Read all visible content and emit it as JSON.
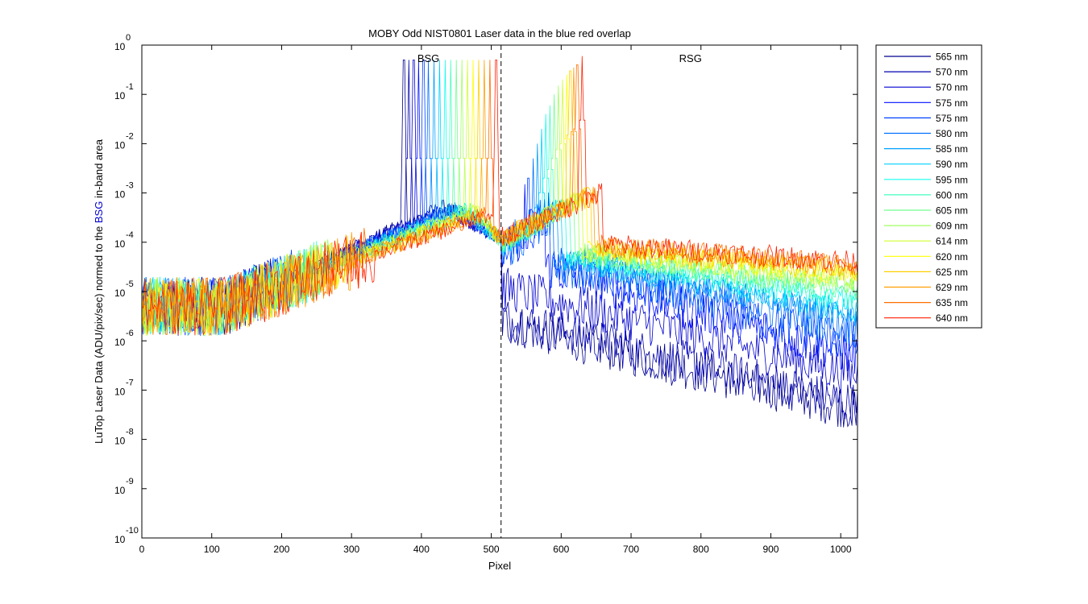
{
  "chart_data": {
    "type": "line",
    "title": "MOBY Odd NIST0801  Laser data in the blue red overlap",
    "xlabel": "Pixel",
    "ylabel_parts": [
      "LuTop Laser Data (ADU/pix/sec) normed to the ",
      "BSG",
      " in-band area"
    ],
    "ylabel_highlight_color": "#0000cc",
    "xlim": [
      0,
      1024
    ],
    "ylim": [
      1e-10,
      1
    ],
    "yscale": "log",
    "grid": false,
    "legend_position": "outside-right",
    "x_ticks": [
      0,
      100,
      200,
      300,
      400,
      500,
      600,
      700,
      800,
      900,
      1000
    ],
    "y_ticks": [
      {
        "base": "10",
        "exp": "0"
      },
      {
        "base": "10",
        "exp": "-1"
      },
      {
        "base": "10",
        "exp": "-2"
      },
      {
        "base": "10",
        "exp": "-3"
      },
      {
        "base": "10",
        "exp": "-4"
      },
      {
        "base": "10",
        "exp": "-5"
      },
      {
        "base": "10",
        "exp": "-6"
      },
      {
        "base": "10",
        "exp": "-7"
      },
      {
        "base": "10",
        "exp": "-8"
      },
      {
        "base": "10",
        "exp": "-9"
      },
      {
        "base": "10",
        "exp": "-10"
      }
    ],
    "divider_x": 514,
    "annotations": [
      {
        "text": "BSG",
        "x": 410,
        "y": 0.45,
        "color": "#0000cc"
      },
      {
        "text": "RSG",
        "x": 785,
        "y": 0.45,
        "color": "#cc0000"
      }
    ],
    "series": [
      {
        "name": "565 nm",
        "color": "#00008f",
        "bsg_peak_x": 375,
        "bsg_peak_y": 0.5,
        "rsg_peak_x": null,
        "rsg_peak_y": null,
        "rsg_level": 4e-08,
        "bsg_start": 5e-06,
        "bsg_hump": 0.0005
      },
      {
        "name": "570 nm",
        "color": "#0000af",
        "bsg_peak_x": 382,
        "bsg_peak_y": 0.5,
        "rsg_peak_x": null,
        "rsg_peak_y": null,
        "rsg_level": 5e-08,
        "bsg_start": 5e-06,
        "bsg_hump": 0.0005
      },
      {
        "name": "570 nm",
        "color": "#0000cf",
        "bsg_peak_x": 389,
        "bsg_peak_y": 0.5,
        "rsg_peak_x": null,
        "rsg_peak_y": null,
        "rsg_level": 2e-07,
        "bsg_start": 5e-06,
        "bsg_hump": 0.00048
      },
      {
        "name": "575 nm",
        "color": "#0010ff",
        "bsg_peak_x": 396,
        "bsg_peak_y": 0.5,
        "rsg_peak_x": 548,
        "rsg_peak_y": 0.0015,
        "rsg_level": 5e-07,
        "bsg_start": 5e-06,
        "bsg_hump": 0.00048
      },
      {
        "name": "575 nm",
        "color": "#0040ff",
        "bsg_peak_x": 403,
        "bsg_peak_y": 0.5,
        "rsg_peak_x": 553,
        "rsg_peak_y": 0.002,
        "rsg_level": 9e-07,
        "bsg_start": 5e-06,
        "bsg_hump": 0.00046
      },
      {
        "name": "580 nm",
        "color": "#0070ff",
        "bsg_peak_x": 410,
        "bsg_peak_y": 0.5,
        "rsg_peak_x": 560,
        "rsg_peak_y": 0.005,
        "rsg_level": 2e-06,
        "bsg_start": 5e-06,
        "bsg_hump": 0.00046
      },
      {
        "name": "585 nm",
        "color": "#00a0ff",
        "bsg_peak_x": 418,
        "bsg_peak_y": 0.5,
        "rsg_peak_x": 566,
        "rsg_peak_y": 0.01,
        "rsg_level": 3e-06,
        "bsg_start": 5e-06,
        "bsg_hump": 0.00045
      },
      {
        "name": "590 nm",
        "color": "#00d0ff",
        "bsg_peak_x": 426,
        "bsg_peak_y": 0.5,
        "rsg_peak_x": 572,
        "rsg_peak_y": 0.02,
        "rsg_level": 4e-06,
        "bsg_start": 5e-06,
        "bsg_hump": 0.00045
      },
      {
        "name": "595 nm",
        "color": "#10ffef",
        "bsg_peak_x": 434,
        "bsg_peak_y": 0.5,
        "rsg_peak_x": 578,
        "rsg_peak_y": 0.04,
        "rsg_level": 6e-06,
        "bsg_start": 5e-06,
        "bsg_hump": 0.00044
      },
      {
        "name": "600 nm",
        "color": "#40ffbf",
        "bsg_peak_x": 442,
        "bsg_peak_y": 0.5,
        "rsg_peak_x": 584,
        "rsg_peak_y": 0.06,
        "rsg_level": 8e-06,
        "bsg_start": 5e-06,
        "bsg_hump": 0.00044
      },
      {
        "name": "605 nm",
        "color": "#70ff8f",
        "bsg_peak_x": 450,
        "bsg_peak_y": 0.5,
        "rsg_peak_x": 590,
        "rsg_peak_y": 0.1,
        "rsg_level": 1.1e-05,
        "bsg_start": 5e-06,
        "bsg_hump": 0.00043
      },
      {
        "name": "609 nm",
        "color": "#a0ff60",
        "bsg_peak_x": 458,
        "bsg_peak_y": 0.5,
        "rsg_peak_x": 596,
        "rsg_peak_y": 0.15,
        "rsg_level": 1.4e-05,
        "bsg_start": 5e-06,
        "bsg_hump": 0.00043
      },
      {
        "name": "614 nm",
        "color": "#d0ff30",
        "bsg_peak_x": 466,
        "bsg_peak_y": 0.5,
        "rsg_peak_x": 602,
        "rsg_peak_y": 0.2,
        "rsg_level": 1.8e-05,
        "bsg_start": 5e-06,
        "bsg_hump": 0.00042
      },
      {
        "name": "620 nm",
        "color": "#ffff00",
        "bsg_peak_x": 474,
        "bsg_peak_y": 0.5,
        "rsg_peak_x": 608,
        "rsg_peak_y": 0.25,
        "rsg_level": 2.2e-05,
        "bsg_start": 5e-06,
        "bsg_hump": 0.00041
      },
      {
        "name": "625 nm",
        "color": "#ffcf00",
        "bsg_peak_x": 482,
        "bsg_peak_y": 0.5,
        "rsg_peak_x": 613,
        "rsg_peak_y": 0.3,
        "rsg_level": 2.6e-05,
        "bsg_start": 5e-06,
        "bsg_hump": 0.0004
      },
      {
        "name": "629 nm",
        "color": "#ff9f00",
        "bsg_peak_x": 490,
        "bsg_peak_y": 0.5,
        "rsg_peak_x": 618,
        "rsg_peak_y": 0.35,
        "rsg_level": 3e-05,
        "bsg_start": 5e-06,
        "bsg_hump": 0.00039
      },
      {
        "name": "635 nm",
        "color": "#ff6f00",
        "bsg_peak_x": 498,
        "bsg_peak_y": 0.5,
        "rsg_peak_x": 623,
        "rsg_peak_y": 0.4,
        "rsg_level": 3.5e-05,
        "bsg_start": 5e-06,
        "bsg_hump": 0.00038
      },
      {
        "name": "640 nm",
        "color": "#ff2000",
        "bsg_peak_x": 507,
        "bsg_peak_y": 0.5,
        "rsg_peak_x": 630,
        "rsg_peak_y": 0.6,
        "rsg_level": 4e-05,
        "bsg_start": 5e-06,
        "bsg_hump": 0.00037
      }
    ]
  }
}
